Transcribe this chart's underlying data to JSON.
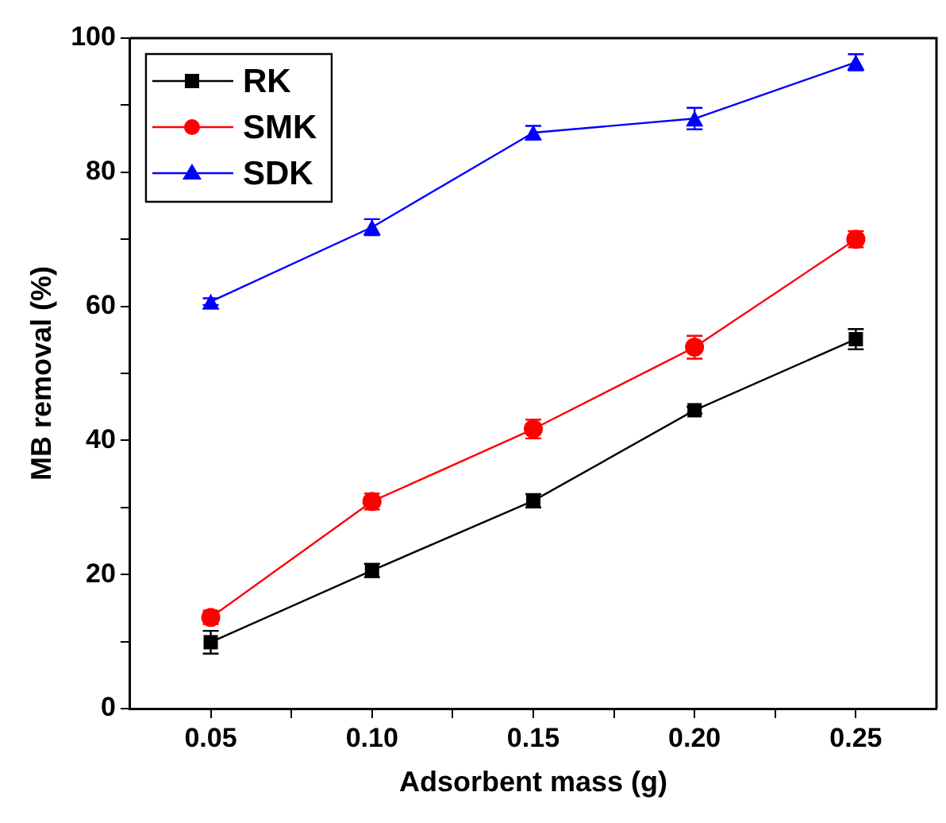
{
  "chart_data": {
    "type": "line",
    "xlabel": "Adsorbent mass (g)",
    "ylabel": "MB removal (%)",
    "x": [
      0.05,
      0.1,
      0.15,
      0.2,
      0.25
    ],
    "xlim": [
      0.025,
      0.275
    ],
    "xticks": [
      {
        "value": 0.05,
        "label": "0.05"
      },
      {
        "value": 0.075,
        "label": null
      },
      {
        "value": 0.1,
        "label": "0.10"
      },
      {
        "value": 0.125,
        "label": null
      },
      {
        "value": 0.15,
        "label": "0.15"
      },
      {
        "value": 0.175,
        "label": null
      },
      {
        "value": 0.2,
        "label": "0.20"
      },
      {
        "value": 0.225,
        "label": null
      },
      {
        "value": 0.25,
        "label": "0.25"
      }
    ],
    "ylim": [
      0,
      100
    ],
    "yticks": [
      0,
      {
        "value": 10,
        "label": null
      },
      20,
      {
        "value": 30,
        "label": null
      },
      40,
      {
        "value": 50,
        "label": null
      },
      60,
      {
        "value": 70,
        "label": null
      },
      80,
      {
        "value": 90,
        "label": null
      },
      100
    ],
    "grid": false,
    "legend": "top left",
    "line_style": "solid",
    "series": [
      {
        "name": "RK",
        "color": "#000000",
        "marker": "square",
        "values": [
          9.9,
          20.6,
          31.0,
          44.5,
          55.1
        ],
        "errors": [
          1.7,
          1,
          1,
          0.5,
          1.5
        ]
      },
      {
        "name": "SMK",
        "color": "#ff0000",
        "marker": "circle",
        "values": [
          13.6,
          30.9,
          41.7,
          53.9,
          70.0
        ],
        "errors": [
          1,
          1.2,
          1.4,
          1.7,
          1.2
        ]
      },
      {
        "name": "SDK",
        "color": "#0000ff",
        "marker": "triangle",
        "values": [
          60.7,
          71.8,
          85.9,
          88.0,
          96.4
        ],
        "errors": [
          0.5,
          1.2,
          1,
          1.6,
          1.2
        ]
      }
    ]
  }
}
